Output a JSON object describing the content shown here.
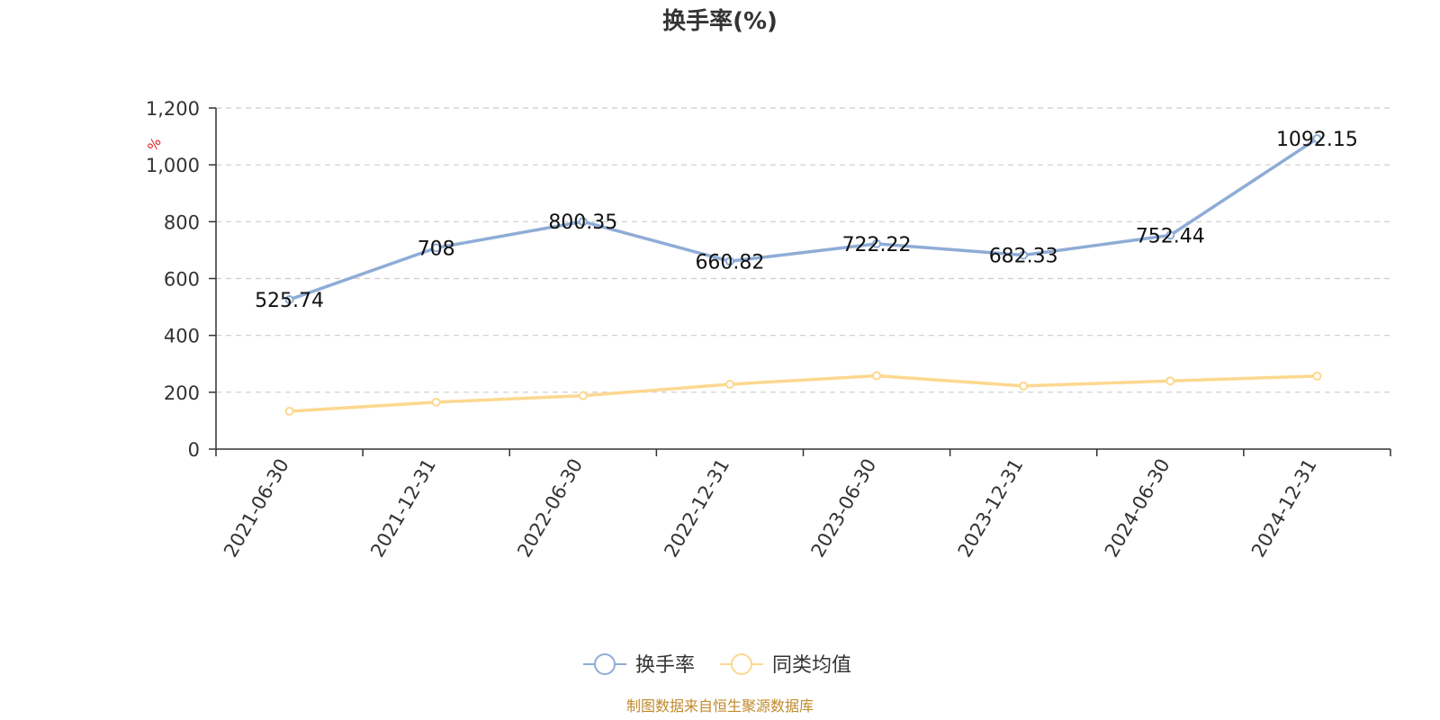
{
  "chart_data": {
    "type": "line",
    "title": "换手率(%)",
    "ylabel": "%",
    "ylim": [
      0,
      1200
    ],
    "yticks": [
      0,
      200,
      400,
      600,
      800,
      1000,
      1200
    ],
    "ytick_labels": [
      "0",
      "200",
      "400",
      "600",
      "800",
      "1,000",
      "1,200"
    ],
    "categories": [
      "2021-06-30",
      "2021-12-31",
      "2022-06-30",
      "2022-12-31",
      "2023-06-30",
      "2023-12-31",
      "2024-06-30",
      "2024-12-31"
    ],
    "grid": true,
    "legend_position": "bottom",
    "series": [
      {
        "name": "换手率",
        "color": "#8eacd6",
        "values": [
          525.74,
          708,
          800.35,
          660.82,
          722.22,
          682.33,
          752.44,
          1092.15
        ],
        "labels": [
          "525.74",
          "708",
          "800.35",
          "660.82",
          "722.22",
          "682.33",
          "752.44",
          "1092.15"
        ],
        "show_labels": true
      },
      {
        "name": "同类均值",
        "color": "#fcd88f",
        "values": [
          133,
          165,
          188,
          228,
          258,
          222,
          240,
          257
        ],
        "show_labels": false
      }
    ],
    "source_note": "制图数据来自恒生聚源数据库"
  }
}
